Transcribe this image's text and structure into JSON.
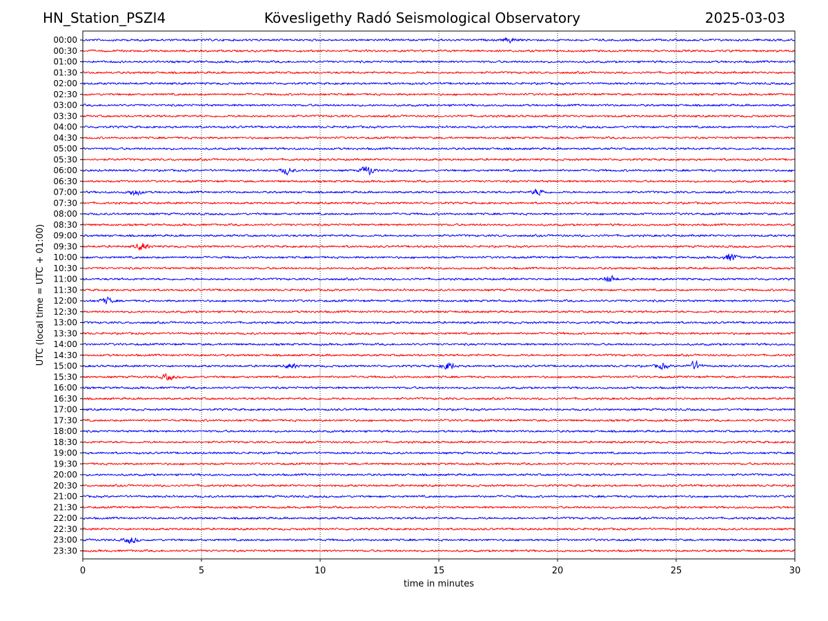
{
  "header": {
    "station": "HN_Station_PSZI4",
    "observatory": "Kövesligethy Radó Seismological Observatory",
    "date": "2025-03-03"
  },
  "chart_data": {
    "type": "line",
    "title": "Kövesligethy Radó Seismological Observatory",
    "xlabel": "time in minutes",
    "ylabel": "UTC (local time = UTC + 01:00)",
    "xlim": [
      0,
      30
    ],
    "x_ticks": [
      "0",
      "5",
      "10",
      "15",
      "20",
      "25",
      "30"
    ],
    "x_tick_values": [
      0,
      5,
      10,
      15,
      20,
      25,
      30
    ],
    "grid": "vertical dotted lines at x ticks",
    "row_labels": [
      "00:00",
      "00:30",
      "01:00",
      "01:30",
      "02:00",
      "02:30",
      "03:00",
      "03:30",
      "04:00",
      "04:30",
      "05:00",
      "05:30",
      "06:00",
      "06:30",
      "07:00",
      "07:30",
      "08:00",
      "08:30",
      "09:00",
      "09:30",
      "10:00",
      "10:30",
      "11:00",
      "11:30",
      "12:00",
      "12:30",
      "13:00",
      "13:30",
      "14:00",
      "14:30",
      "15:00",
      "15:30",
      "16:00",
      "16:30",
      "17:00",
      "17:30",
      "18:00",
      "18:30",
      "19:00",
      "19:30",
      "20:00",
      "20:30",
      "21:00",
      "21:30",
      "22:00",
      "22:30",
      "23:00",
      "23:30"
    ],
    "trace_colors": [
      "#0000ff",
      "#ff0000"
    ],
    "events": [
      {
        "row": "00:00",
        "minute": 18.0,
        "amplitude": 3
      },
      {
        "row": "06:00",
        "minute": 8.6,
        "amplitude": 4
      },
      {
        "row": "06:00",
        "minute": 12.0,
        "amplitude": 6
      },
      {
        "row": "07:00",
        "minute": 2.2,
        "amplitude": 4
      },
      {
        "row": "07:00",
        "minute": 19.2,
        "amplitude": 4
      },
      {
        "row": "09:30",
        "minute": 2.5,
        "amplitude": 5
      },
      {
        "row": "10:00",
        "minute": 27.3,
        "amplitude": 5
      },
      {
        "row": "11:00",
        "minute": 22.2,
        "amplitude": 4
      },
      {
        "row": "12:00",
        "minute": 1.0,
        "amplitude": 4
      },
      {
        "row": "15:00",
        "minute": 8.8,
        "amplitude": 3
      },
      {
        "row": "15:00",
        "minute": 15.4,
        "amplitude": 5
      },
      {
        "row": "15:00",
        "minute": 24.4,
        "amplitude": 3
      },
      {
        "row": "15:00",
        "minute": 25.8,
        "amplitude": 5
      },
      {
        "row": "15:30",
        "minute": 3.6,
        "amplitude": 4
      },
      {
        "row": "23:00",
        "minute": 2.0,
        "amplitude": 4
      }
    ]
  }
}
